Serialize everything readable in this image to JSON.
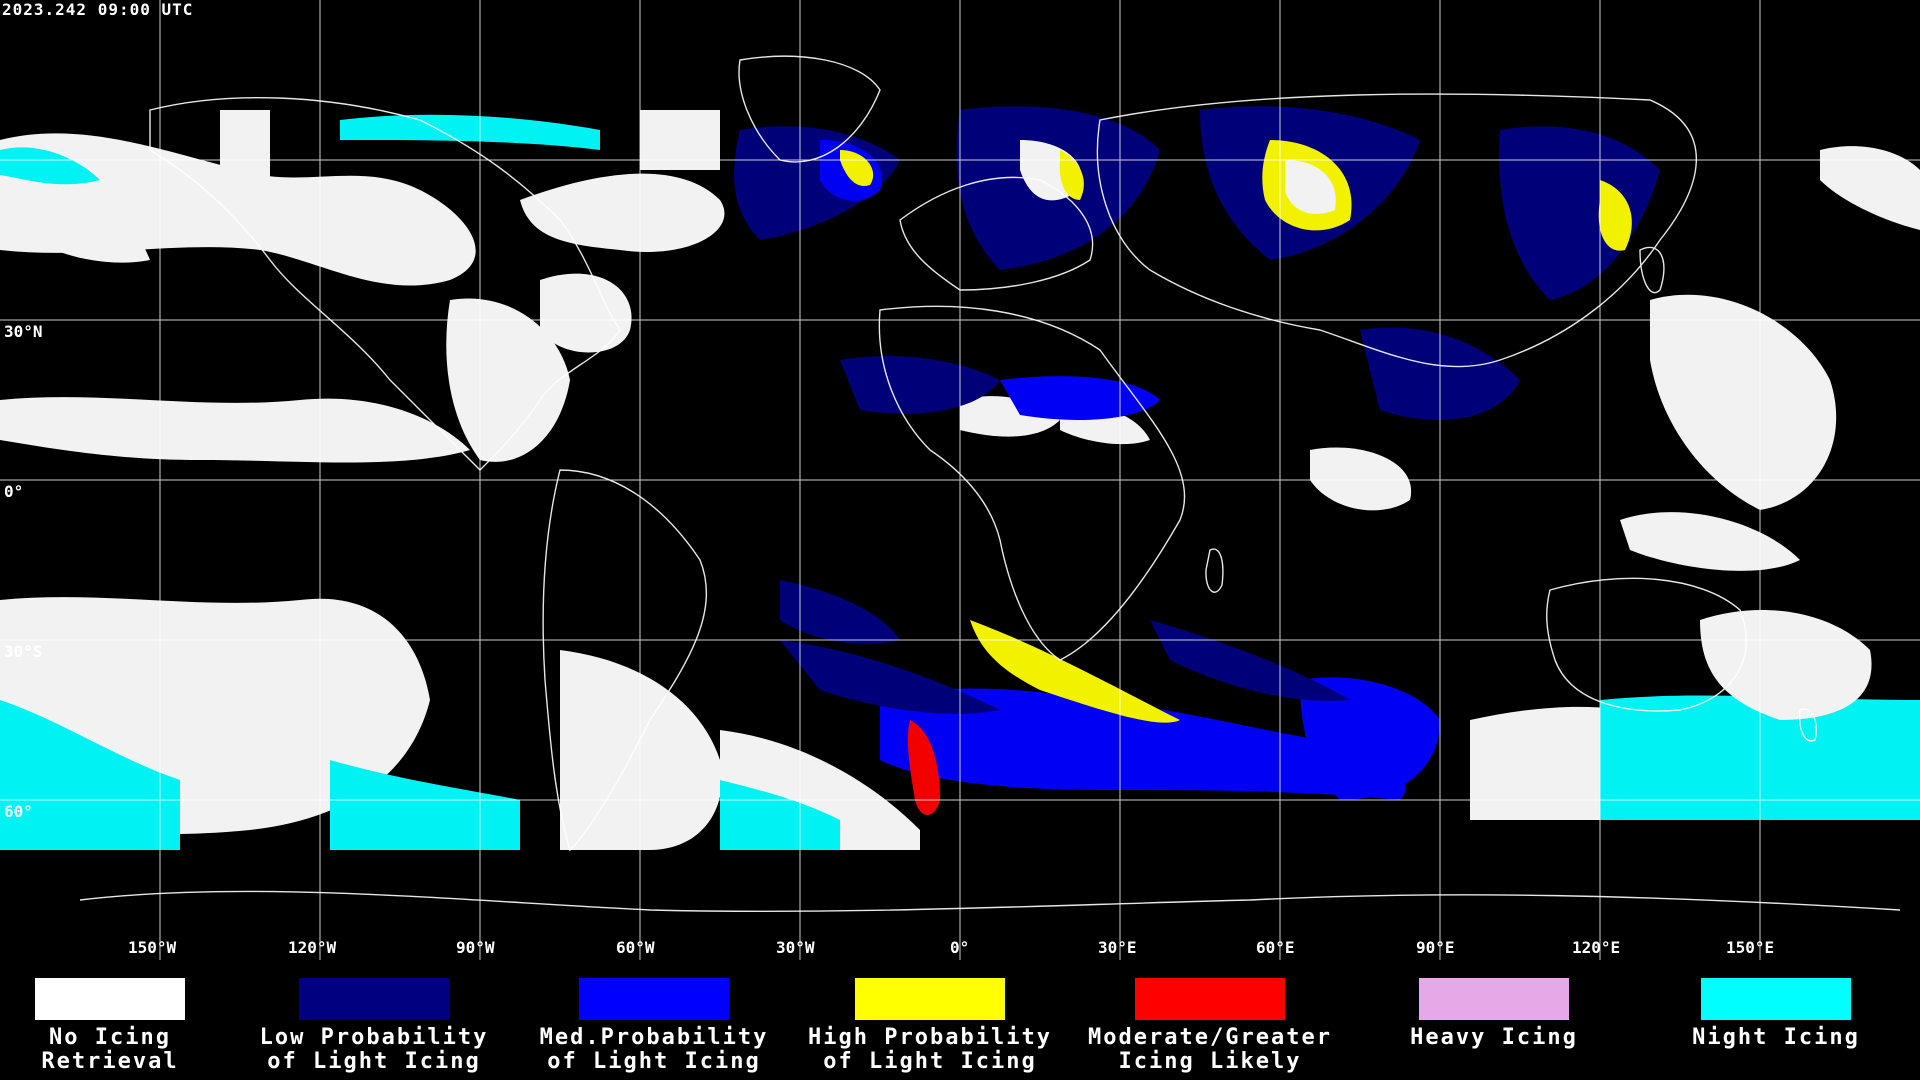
{
  "timestamp": "2023.242 09:00 UTC",
  "lat_labels": [
    "30°N",
    "0°",
    "30°S",
    "60°"
  ],
  "lon_labels": [
    "150°W",
    "120°W",
    "90°W",
    "60°W",
    "30°W",
    "0°",
    "30°E",
    "60°E",
    "90°E",
    "120°E",
    "150°E"
  ],
  "legend": [
    {
      "line1": "No Icing",
      "line2": "Retrieval",
      "color": "#ffffff"
    },
    {
      "line1": "Low Probability",
      "line2": "of Light Icing",
      "color": "#000080"
    },
    {
      "line1": "Med.Probability",
      "line2": "of Light Icing",
      "color": "#0000ff"
    },
    {
      "line1": "High Probability",
      "line2": "of Light Icing",
      "color": "#ffff00"
    },
    {
      "line1": "Moderate/Greater",
      "line2": "Icing Likely",
      "color": "#ff0000"
    },
    {
      "line1": "Heavy Icing",
      "line2": "",
      "color": "#e6a8e6"
    },
    {
      "line1": "Night Icing",
      "line2": "",
      "color": "#00ffff"
    }
  ]
}
